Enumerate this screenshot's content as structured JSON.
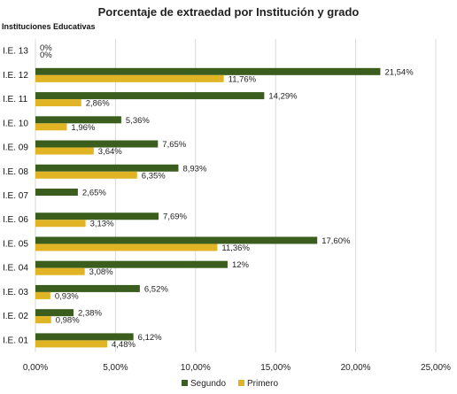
{
  "chart_data": {
    "type": "bar",
    "orientation": "horizontal",
    "title": "Porcentaje de extraedad por Institución y grado",
    "ylabel": "Instituciones Educativas",
    "xlabel": "",
    "xlim": [
      0,
      25
    ],
    "x_ticks": [
      0,
      5,
      10,
      15,
      20,
      25
    ],
    "x_tick_labels": [
      "0,00%",
      "5,00%",
      "10,00%",
      "15,00%",
      "20,00%",
      "25,00%"
    ],
    "grid": true,
    "legend_position": "bottom",
    "categories": [
      "I.E. 13",
      "I.E. 12",
      "I.E. 11",
      "I.E. 10",
      "I.E. 09",
      "I.E. 08",
      "I.E. 07",
      "I.E. 06",
      "I.E. 05",
      "I.E. 04",
      "I.E. 03",
      "I.E. 02",
      "I.E. 01"
    ],
    "series": [
      {
        "name": "Segundo",
        "color": "#3b5e1e",
        "values": [
          0,
          21.54,
          14.29,
          5.36,
          7.65,
          8.93,
          2.65,
          7.69,
          17.6,
          12,
          6.52,
          2.38,
          6.12
        ],
        "labels": [
          "0%",
          "21,54%",
          "14,29%",
          "5,36%",
          "7,65%",
          "8,93%",
          "2,65%",
          "7,69%",
          "17,60%",
          "12%",
          "6,52%",
          "2,38%",
          "6,12%"
        ]
      },
      {
        "name": "Primero",
        "color": "#e0b424",
        "values": [
          0,
          11.76,
          2.86,
          1.96,
          3.64,
          6.35,
          0,
          3.13,
          11.36,
          3.08,
          0.93,
          0.98,
          4.48
        ],
        "labels": [
          "0%",
          "11,76%",
          "2,86%",
          "1,96%",
          "3,64%",
          "6,35%",
          "",
          "3,13%",
          "11,36%",
          "3,08%",
          "0,93%",
          "0,98%",
          "4,48%"
        ]
      }
    ]
  }
}
